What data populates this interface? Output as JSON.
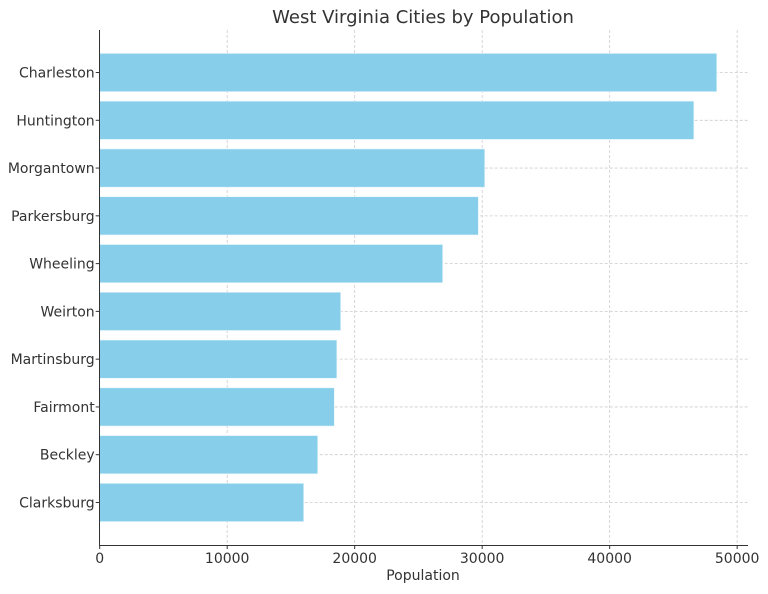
{
  "chart_data": {
    "type": "bar",
    "orientation": "horizontal",
    "title": "West Virginia Cities by Population",
    "xlabel": "Population",
    "ylabel": "",
    "categories": [
      "Charleston",
      "Huntington",
      "Morgantown",
      "Parkersburg",
      "Wheeling",
      "Weirton",
      "Martinsburg",
      "Fairmont",
      "Beckley",
      "Clarksburg"
    ],
    "values": [
      48400,
      46600,
      30200,
      29700,
      26900,
      18900,
      18600,
      18400,
      17100,
      16000
    ],
    "xlim": [
      0,
      50850
    ],
    "xticks": [
      0,
      10000,
      20000,
      30000,
      40000,
      50000
    ],
    "xtick_labels": [
      "0",
      "10000",
      "20000",
      "30000",
      "40000",
      "50000"
    ],
    "grid": true,
    "bar_color": "#87ceeb"
  }
}
